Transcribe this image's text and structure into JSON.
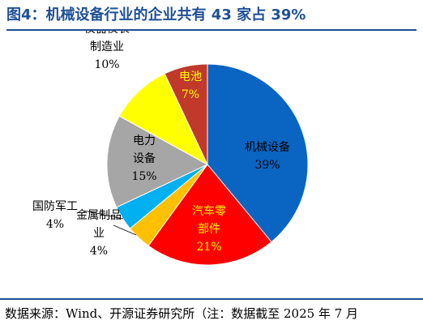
{
  "title": "图4：机械设备行业的企业共有 43 家占 39%",
  "source": "数据来源：Wind、开源证券研究所（注：数据截至 2025 年 7 月",
  "chart_data": {
    "type": "pie",
    "title": "图4：机械设备行业的企业共有 43 家占 39%",
    "slices": [
      {
        "name": "机械设备",
        "value": 39,
        "label": "39%",
        "color": "#0a64c2",
        "text_color": "#000000"
      },
      {
        "name": "汽车零部件",
        "value": 21,
        "label": "21%",
        "color": "#ff0000",
        "text_color": "#ffff00"
      },
      {
        "name": "金属制品业",
        "value": 4,
        "label": "4%",
        "color": "#ffc000",
        "text_color": "#000000"
      },
      {
        "name": "国防军工",
        "value": 4,
        "label": "4%",
        "color": "#00b0f0",
        "text_color": "#000000"
      },
      {
        "name": "电力设备",
        "value": 15,
        "label": "15%",
        "color": "#a6a6a6",
        "text_color": "#000000"
      },
      {
        "name": "仪器仪表制造业",
        "value": 10,
        "label": "10%",
        "color": "#ffff00",
        "text_color": "#000000"
      },
      {
        "name": "电池",
        "value": 7,
        "label": "7%",
        "color": "#c0392b",
        "text_color": "#ffff00"
      }
    ]
  }
}
